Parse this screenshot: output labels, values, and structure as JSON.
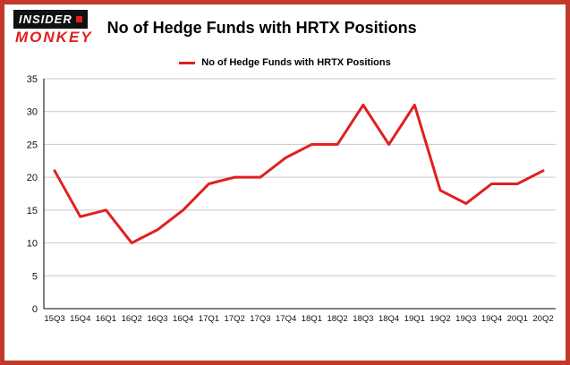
{
  "brand": {
    "line1": "INSIDER",
    "line2": "MONKEY"
  },
  "header": {
    "title": "No of Hedge Funds with HRTX Positions"
  },
  "legend": {
    "label": "No of Hedge Funds with HRTX Positions",
    "color": "#e02020"
  },
  "colors": {
    "border": "#c0392b",
    "line": "#e02020",
    "grid": "#c9c9c9",
    "axis": "#000000"
  },
  "chart_data": {
    "type": "line",
    "title": "No of Hedge Funds with HRTX Positions",
    "categories": [
      "15Q3",
      "15Q4",
      "16Q1",
      "16Q2",
      "16Q3",
      "16Q4",
      "17Q1",
      "17Q2",
      "17Q3",
      "17Q4",
      "18Q1",
      "18Q2",
      "18Q3",
      "18Q4",
      "19Q1",
      "19Q2",
      "19Q3",
      "19Q4",
      "20Q1",
      "20Q2"
    ],
    "values": [
      21,
      14,
      15,
      10,
      12,
      15,
      19,
      20,
      20,
      23,
      25,
      25,
      31,
      25,
      31,
      18,
      16,
      19,
      19,
      21
    ],
    "xlabel": "",
    "ylabel": "",
    "ylim": [
      0,
      35
    ],
    "yticks": [
      0,
      5,
      10,
      15,
      20,
      25,
      30,
      35
    ],
    "grid": true,
    "legend_position": "top-center",
    "line_color": "#e02020"
  }
}
